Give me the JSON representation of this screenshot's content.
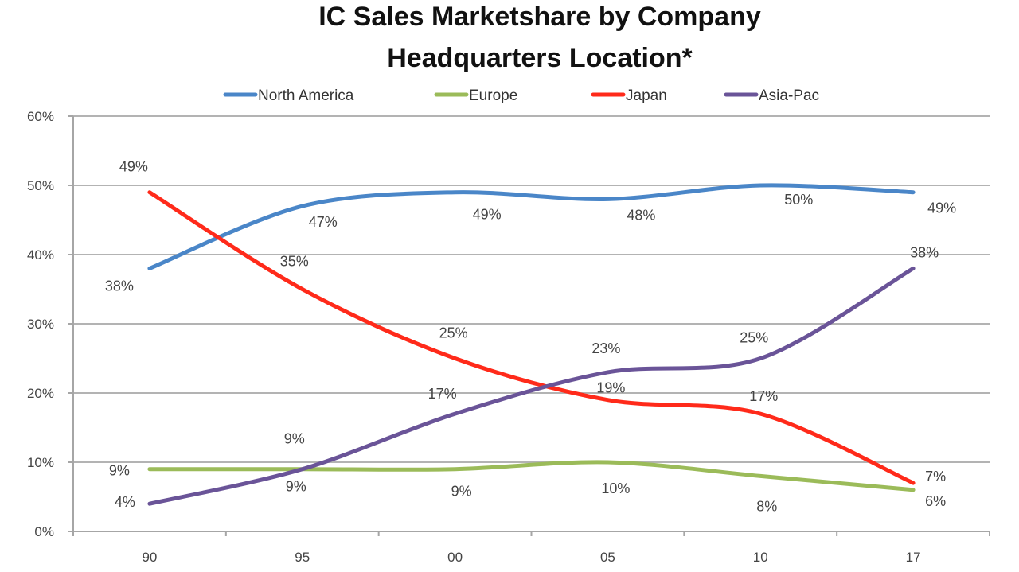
{
  "chart_data": {
    "type": "line",
    "title": [
      "IC Sales Marketshare by Company",
      "Headquarters Location*"
    ],
    "xlabel": "",
    "ylabel": "",
    "categories": [
      "90",
      "95",
      "00",
      "05",
      "10",
      "17"
    ],
    "ylim": [
      0,
      60
    ],
    "yticks": [
      0,
      10,
      20,
      30,
      40,
      50,
      60
    ],
    "ytick_labels": [
      "0%",
      "10%",
      "20%",
      "30%",
      "40%",
      "50%",
      "60%"
    ],
    "grid": true,
    "legend_position": "top",
    "series": [
      {
        "name": "North America",
        "color": "#4A86C8",
        "values": [
          38,
          47,
          49,
          48,
          50,
          49
        ],
        "labels": [
          "38%",
          "47%",
          "49%",
          "48%",
          "50%",
          "49%"
        ]
      },
      {
        "name": "Europe",
        "color": "#9BBB59",
        "values": [
          9,
          9,
          9,
          10,
          8,
          6
        ],
        "labels": [
          "9%",
          "9%",
          "9%",
          "10%",
          "8%",
          "6%"
        ]
      },
      {
        "name": "Japan",
        "color": "#FF2A1A",
        "values": [
          49,
          35,
          25,
          19,
          17,
          7
        ],
        "labels": [
          "49%",
          "35%",
          "25%",
          "19%",
          "17%",
          "7%"
        ]
      },
      {
        "name": "Asia-Pac",
        "color": "#6A5498",
        "values": [
          4,
          9,
          17,
          23,
          25,
          38
        ],
        "labels": [
          "4%",
          "9%",
          "17%",
          "23%",
          "25%",
          "38%"
        ]
      }
    ]
  }
}
